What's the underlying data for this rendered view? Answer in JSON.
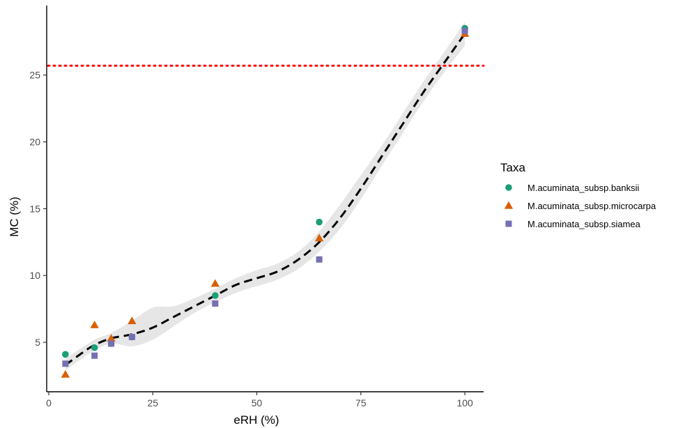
{
  "chart_data": {
    "type": "scatter",
    "xlabel": "eRH (%)",
    "ylabel": "MC (%)",
    "xlim": [
      -0.5,
      104.5
    ],
    "ylim": [
      1.3,
      30.2
    ],
    "x_ticks": [
      0,
      25,
      50,
      75,
      100
    ],
    "y_ticks": [
      5,
      10,
      15,
      20,
      25
    ],
    "grid": false,
    "legend": {
      "title": "Taxa",
      "position": "right"
    },
    "reference_line": {
      "y": 25.7,
      "style": "dotted",
      "color": "#ff0000"
    },
    "series": [
      {
        "name": "M.acuminata_subsp.banksii",
        "marker": "circle",
        "color": "#1b9e77",
        "points": [
          [
            4,
            4.1
          ],
          [
            11,
            4.6
          ],
          [
            15,
            4.9
          ],
          [
            20,
            5.4
          ],
          [
            40,
            8.5
          ],
          [
            65,
            14.0
          ],
          [
            100,
            28.5
          ]
        ]
      },
      {
        "name": "M.acuminata_subsp.microcarpa",
        "marker": "triangle",
        "color": "#d95f02",
        "points": [
          [
            4,
            2.6
          ],
          [
            11,
            6.3
          ],
          [
            15,
            5.3
          ],
          [
            20,
            6.6
          ],
          [
            40,
            9.4
          ],
          [
            65,
            12.8
          ],
          [
            100,
            28.1
          ]
        ]
      },
      {
        "name": "M.acuminata_subsp.siamea",
        "marker": "square",
        "color": "#7570b3",
        "points": [
          [
            4,
            3.4
          ],
          [
            11,
            4.0
          ],
          [
            15,
            4.9
          ],
          [
            20,
            5.4
          ],
          [
            40,
            7.9
          ],
          [
            65,
            11.2
          ],
          [
            100,
            28.3
          ]
        ]
      }
    ],
    "smooth_fit": {
      "style": "dashed",
      "color": "#000000",
      "ribbon_color": "#e6e6e6",
      "points": [
        {
          "x": 4,
          "y": 3.3,
          "lo": 2.9,
          "hi": 3.8
        },
        {
          "x": 8,
          "y": 4.2,
          "lo": 3.8,
          "hi": 4.6
        },
        {
          "x": 11,
          "y": 4.8,
          "lo": 4.4,
          "hi": 5.2
        },
        {
          "x": 15,
          "y": 5.3,
          "lo": 4.9,
          "hi": 5.7
        },
        {
          "x": 20,
          "y": 5.6,
          "lo": 4.7,
          "hi": 6.6
        },
        {
          "x": 25,
          "y": 6.1,
          "lo": 5.2,
          "hi": 7.6
        },
        {
          "x": 30,
          "y": 6.9,
          "lo": 6.2,
          "hi": 7.7
        },
        {
          "x": 35,
          "y": 7.7,
          "lo": 7.2,
          "hi": 8.3
        },
        {
          "x": 40,
          "y": 8.5,
          "lo": 8.0,
          "hi": 9.0
        },
        {
          "x": 45,
          "y": 9.3,
          "lo": 8.7,
          "hi": 9.8
        },
        {
          "x": 50,
          "y": 9.8,
          "lo": 9.2,
          "hi": 10.4
        },
        {
          "x": 55,
          "y": 10.3,
          "lo": 9.7,
          "hi": 10.9
        },
        {
          "x": 60,
          "y": 11.2,
          "lo": 10.5,
          "hi": 11.8
        },
        {
          "x": 65,
          "y": 12.5,
          "lo": 11.8,
          "hi": 13.3
        },
        {
          "x": 70,
          "y": 14.3,
          "lo": 13.5,
          "hi": 15.3
        },
        {
          "x": 75,
          "y": 16.5,
          "lo": 15.7,
          "hi": 17.5
        },
        {
          "x": 80,
          "y": 18.9,
          "lo": 18.2,
          "hi": 19.7
        },
        {
          "x": 85,
          "y": 21.3,
          "lo": 20.6,
          "hi": 22.1
        },
        {
          "x": 90,
          "y": 23.7,
          "lo": 23.0,
          "hi": 24.5
        },
        {
          "x": 95,
          "y": 25.9,
          "lo": 25.2,
          "hi": 26.7
        },
        {
          "x": 100,
          "y": 28.1,
          "lo": 27.2,
          "hi": 29.0
        }
      ]
    }
  }
}
